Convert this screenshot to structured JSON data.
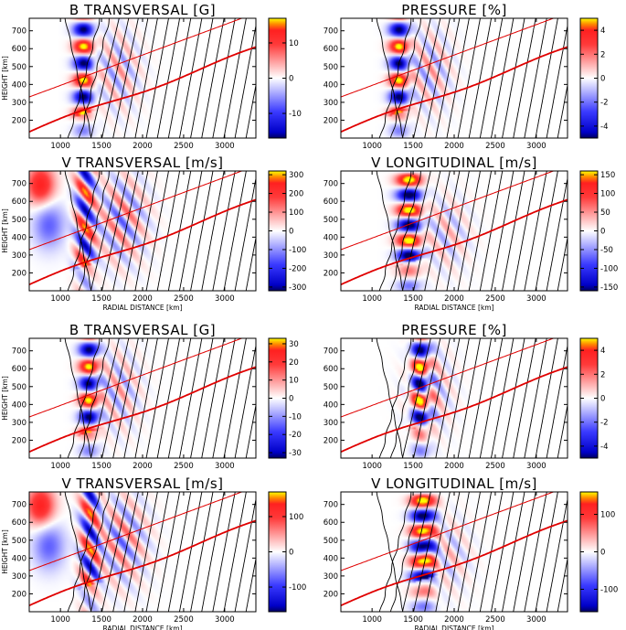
{
  "chart_data": [
    {
      "type": "heatmap",
      "title": "B TRANSVERSAL [G]",
      "quantity": "b",
      "wave_center": 1280,
      "xlabel": "",
      "ylabel": "HEIGHT [km]",
      "xlim": [
        620,
        3380
      ],
      "ylim": [
        100,
        770
      ],
      "xticks": [
        "1000",
        "1500",
        "2000",
        "2500",
        "3000"
      ],
      "yticks": [
        "200",
        "300",
        "400",
        "500",
        "600",
        "700"
      ],
      "colorbar": {
        "range": [
          -17,
          17
        ],
        "ticks": [
          "10",
          "0",
          "-10"
        ],
        "tick_values": [
          10,
          0,
          -10
        ]
      }
    },
    {
      "type": "heatmap",
      "title": "PRESSURE [%]",
      "quantity": "p",
      "wave_center": 1330,
      "xlabel": "",
      "ylabel": "",
      "xlim": [
        620,
        3380
      ],
      "ylim": [
        100,
        770
      ],
      "xticks": [
        "1000",
        "1500",
        "2000",
        "2500",
        "3000"
      ],
      "yticks": [
        "200",
        "300",
        "400",
        "500",
        "600",
        "700"
      ],
      "colorbar": {
        "range": [
          -5,
          5
        ],
        "ticks": [
          "4",
          "2",
          "0",
          "-2",
          "-4"
        ],
        "tick_values": [
          4,
          2,
          0,
          -2,
          -4
        ]
      }
    },
    {
      "type": "heatmap",
      "title": "V TRANSVERSAL [m/s]",
      "quantity": "vt",
      "wave_center": 1300,
      "xlabel": "RADIAL DISTANCE [km]",
      "ylabel": "HEIGHT [km]",
      "xlim": [
        620,
        3380
      ],
      "ylim": [
        100,
        770
      ],
      "xticks": [
        "1000",
        "1500",
        "2000",
        "2500",
        "3000"
      ],
      "yticks": [
        "200",
        "300",
        "400",
        "500",
        "600",
        "700"
      ],
      "colorbar": {
        "range": [
          -320,
          320
        ],
        "ticks": [
          "300",
          "200",
          "100",
          "0",
          "-100",
          "-200",
          "-300"
        ],
        "tick_values": [
          300,
          200,
          100,
          0,
          -100,
          -200,
          -300
        ]
      }
    },
    {
      "type": "heatmap",
      "title": "V LONGITUDINAL [m/s]",
      "quantity": "vl",
      "wave_center": 1450,
      "xlabel": "RADIAL DISTANCE [km]",
      "ylabel": "",
      "xlim": [
        620,
        3380
      ],
      "ylim": [
        100,
        770
      ],
      "xticks": [
        "1000",
        "1500",
        "2000",
        "2500",
        "3000"
      ],
      "yticks": [
        "200",
        "300",
        "400",
        "500",
        "600",
        "700"
      ],
      "colorbar": {
        "range": [
          -160,
          160
        ],
        "ticks": [
          "150",
          "100",
          "50",
          "0",
          "-50",
          "-100",
          "-150"
        ],
        "tick_values": [
          150,
          100,
          50,
          0,
          -50,
          -100,
          -150
        ]
      }
    },
    {
      "type": "heatmap",
      "title": "B TRANSVERSAL [G]",
      "quantity": "b",
      "wave_center": 1350,
      "xlabel": "",
      "ylabel": "HEIGHT [km]",
      "xlim": [
        620,
        3380
      ],
      "ylim": [
        100,
        770
      ],
      "xticks": [
        "1000",
        "1500",
        "2000",
        "2500",
        "3000"
      ],
      "yticks": [
        "200",
        "300",
        "400",
        "500",
        "600",
        "700"
      ],
      "colorbar": {
        "range": [
          -33,
          33
        ],
        "ticks": [
          "30",
          "20",
          "10",
          "0",
          "-10",
          "-20",
          "-30"
        ],
        "tick_values": [
          30,
          20,
          10,
          0,
          -10,
          -20,
          -30
        ]
      }
    },
    {
      "type": "heatmap",
      "title": "PRESSURE [%]",
      "quantity": "p",
      "wave_center": 1600,
      "xlabel": "",
      "ylabel": "",
      "xlim": [
        620,
        3380
      ],
      "ylim": [
        100,
        770
      ],
      "xticks": [
        "1000",
        "1500",
        "2000",
        "2500",
        "3000"
      ],
      "yticks": [
        "200",
        "300",
        "400",
        "500",
        "600",
        "700"
      ],
      "colorbar": {
        "range": [
          -5,
          5
        ],
        "ticks": [
          "4",
          "2",
          "0",
          "-2",
          "-4"
        ],
        "tick_values": [
          4,
          2,
          0,
          -2,
          -4
        ]
      }
    },
    {
      "type": "heatmap",
      "title": "V TRANSVERSAL [m/s]",
      "quantity": "vt",
      "wave_center": 1360,
      "xlabel": "RADIAL DISTANCE [km]",
      "ylabel": "HEIGHT [km]",
      "xlim": [
        620,
        3380
      ],
      "ylim": [
        100,
        770
      ],
      "xticks": [
        "1000",
        "1500",
        "2000",
        "2500",
        "3000"
      ],
      "yticks": [
        "200",
        "300",
        "400",
        "500",
        "600",
        "700"
      ],
      "colorbar": {
        "range": [
          -170,
          170
        ],
        "ticks": [
          "100",
          "0",
          "-100"
        ],
        "tick_values": [
          100,
          0,
          -100
        ]
      }
    },
    {
      "type": "heatmap",
      "title": "V LONGITUDINAL [m/s]",
      "quantity": "vl",
      "wave_center": 1620,
      "xlabel": "RADIAL DISTANCE [km]",
      "ylabel": "",
      "xlim": [
        620,
        3380
      ],
      "ylim": [
        100,
        770
      ],
      "xticks": [
        "1000",
        "1500",
        "2000",
        "2500",
        "3000"
      ],
      "yticks": [
        "200",
        "300",
        "400",
        "500",
        "600",
        "700"
      ],
      "colorbar": {
        "range": [
          -160,
          160
        ],
        "ticks": [
          "100",
          "0",
          "-100"
        ],
        "tick_values": [
          100,
          0,
          -100
        ]
      }
    }
  ]
}
